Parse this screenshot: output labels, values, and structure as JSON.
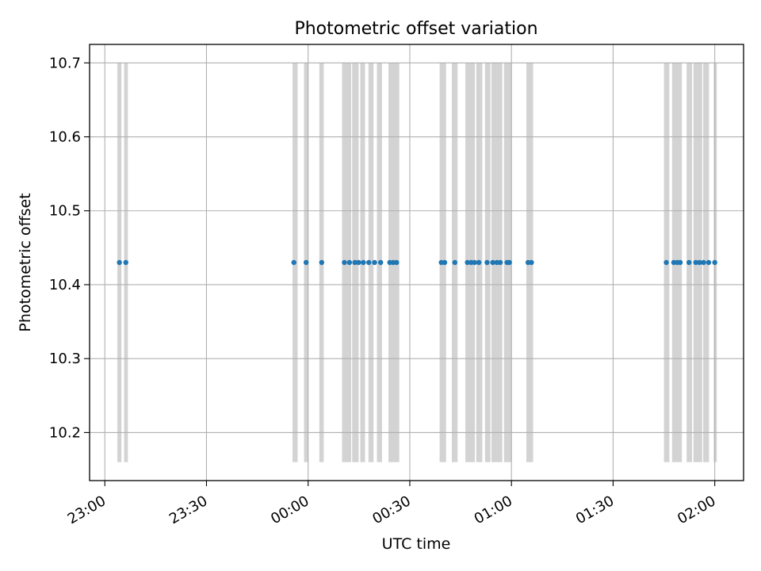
{
  "chart_data": {
    "type": "scatter",
    "title": "Photometric offset variation",
    "xlabel": "UTC time",
    "ylabel": "Photometric offset",
    "x_axis": {
      "type": "time",
      "start": "23:00",
      "range_minutes": [
        -4.5,
        188.5
      ],
      "ticks": [
        {
          "minutes": 0,
          "label": "23:00"
        },
        {
          "minutes": 30,
          "label": "23:30"
        },
        {
          "minutes": 60,
          "label": "00:00"
        },
        {
          "minutes": 90,
          "label": "00:30"
        },
        {
          "minutes": 120,
          "label": "01:00"
        },
        {
          "minutes": 150,
          "label": "01:30"
        },
        {
          "minutes": 180,
          "label": "02:00"
        }
      ]
    },
    "ylim": [
      10.135,
      10.725
    ],
    "yticks": [
      {
        "value": 10.2,
        "label": "10.2"
      },
      {
        "value": 10.3,
        "label": "10.3"
      },
      {
        "value": 10.4,
        "label": "10.4"
      },
      {
        "value": 10.5,
        "label": "10.5"
      },
      {
        "value": 10.6,
        "label": "10.6"
      },
      {
        "value": 10.7,
        "label": "10.7"
      }
    ],
    "grid": true,
    "band_range": [
      10.16,
      10.7
    ],
    "bands": [
      [
        3.7,
        4.9
      ],
      [
        5.7,
        6.8
      ],
      [
        55.4,
        56.9
      ],
      [
        58.8,
        60.1
      ],
      [
        63.3,
        64.6
      ],
      [
        70.0,
        72.7
      ],
      [
        73.0,
        74.9
      ],
      [
        75.4,
        76.8
      ],
      [
        77.8,
        79.3
      ],
      [
        80.3,
        81.8
      ],
      [
        83.7,
        86.9
      ],
      [
        98.8,
        100.7
      ],
      [
        102.4,
        104.1
      ],
      [
        106.4,
        109.2
      ],
      [
        109.6,
        111.4
      ],
      [
        112.2,
        113.8
      ],
      [
        114.1,
        117.3
      ],
      [
        117.8,
        120.0
      ],
      [
        124.4,
        126.4
      ],
      [
        165.0,
        166.6
      ],
      [
        167.4,
        170.3
      ],
      [
        171.7,
        173.3
      ],
      [
        173.7,
        176.3
      ],
      [
        176.6,
        178.3
      ],
      [
        179.7,
        180.6
      ]
    ],
    "series": [
      {
        "marker_color": "#1f77b4",
        "x": [
          4.3,
          6.2,
          55.8,
          59.4,
          64.0,
          70.7,
          72.2,
          73.8,
          74.9,
          76.3,
          77.9,
          79.6,
          81.4,
          84.1,
          85.1,
          86.1,
          99.3,
          100.3,
          103.3,
          107.0,
          108.1,
          109.1,
          110.4,
          112.8,
          114.5,
          115.7,
          116.7,
          118.7,
          119.4,
          124.9,
          125.9,
          165.7,
          167.9,
          168.9,
          169.8,
          172.4,
          174.4,
          175.5,
          176.7,
          178.2,
          180.0
        ],
        "y": [
          10.43,
          10.43,
          10.43,
          10.43,
          10.43,
          10.43,
          10.43,
          10.43,
          10.43,
          10.43,
          10.43,
          10.43,
          10.43,
          10.43,
          10.43,
          10.43,
          10.43,
          10.43,
          10.43,
          10.43,
          10.43,
          10.43,
          10.43,
          10.43,
          10.43,
          10.43,
          10.43,
          10.43,
          10.43,
          10.43,
          10.43,
          10.43,
          10.43,
          10.43,
          10.43,
          10.43,
          10.43,
          10.43,
          10.43,
          10.43,
          10.43
        ]
      }
    ],
    "colors": {
      "band": "#d3d3d3",
      "grid": "#b0b0b0",
      "axes": "#000000"
    }
  }
}
